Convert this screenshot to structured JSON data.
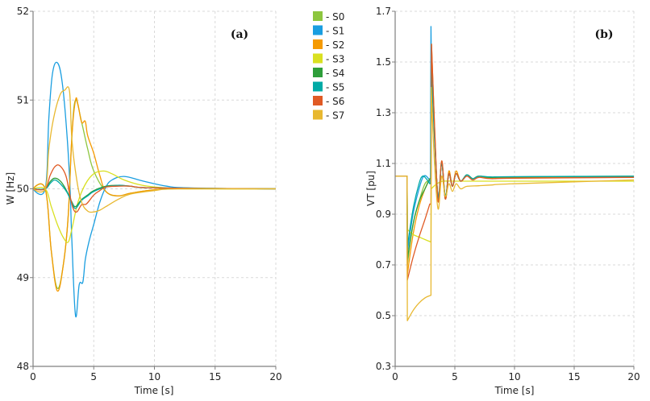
{
  "legend": {
    "items": [
      {
        "label": "- S0",
        "color": "#8dc63f"
      },
      {
        "label": "- S1",
        "color": "#1a9ee0"
      },
      {
        "label": "- S2",
        "color": "#f59a00"
      },
      {
        "label": "- S3",
        "color": "#d9e021"
      },
      {
        "label": "- S4",
        "color": "#2e9e3a"
      },
      {
        "label": "- S5",
        "color": "#00aaa6"
      },
      {
        "label": "- S6",
        "color": "#e05a24"
      },
      {
        "label": "- S7",
        "color": "#e8b830"
      }
    ]
  },
  "chart_data": [
    {
      "type": "line",
      "panel_label": "(a)",
      "title": "",
      "xlabel": "Time [s]",
      "ylabel": "W [Hz]",
      "xlim": [
        0,
        20
      ],
      "ylim": [
        48,
        52
      ],
      "xticks": [
        0,
        5,
        10,
        15,
        20
      ],
      "yticks": [
        48,
        49,
        50,
        51,
        52
      ],
      "ytick_labels": [
        "48",
        "49",
        "50",
        "51",
        "52"
      ],
      "grid": true,
      "legend_position": "right",
      "series": [
        {
          "name": "S0",
          "x": [
            0,
            1,
            1.5,
            2,
            2.5,
            2.9,
            3.2,
            3.5,
            4,
            4.5,
            5,
            6,
            7,
            8,
            10,
            12,
            20
          ],
          "y": [
            50,
            50,
            49.3,
            48.88,
            49.15,
            49.7,
            50.6,
            51.0,
            50.75,
            50.45,
            50.2,
            49.97,
            49.92,
            49.95,
            49.99,
            50,
            50
          ]
        },
        {
          "name": "S1",
          "x": [
            0,
            1,
            1.3,
            1.6,
            2,
            2.4,
            2.8,
            3.05,
            3.2,
            3.5,
            3.8,
            4.1,
            4.3,
            4.6,
            5,
            5.5,
            6,
            6.5,
            7.5,
            9,
            11,
            13,
            20
          ],
          "y": [
            50,
            50,
            50.8,
            51.3,
            51.42,
            51.2,
            50.6,
            50.0,
            49.4,
            48.57,
            48.92,
            48.95,
            49.2,
            49.4,
            49.6,
            49.85,
            50.02,
            50.1,
            50.14,
            50.09,
            50.03,
            50.01,
            50
          ]
        },
        {
          "name": "S2",
          "x": [
            0,
            1,
            1.5,
            2,
            2.5,
            2.9,
            3.2,
            3.5,
            3.7,
            4,
            4.3,
            4.5,
            5,
            5.5,
            6,
            7,
            8,
            10,
            12,
            20
          ],
          "y": [
            50,
            50,
            49.3,
            48.85,
            49.15,
            49.7,
            50.6,
            51.0,
            50.95,
            50.75,
            50.76,
            50.6,
            50.4,
            50.15,
            49.97,
            49.92,
            49.95,
            49.99,
            50,
            50
          ]
        },
        {
          "name": "S3",
          "x": [
            0,
            1,
            1.5,
            2,
            2.5,
            2.9,
            3.2,
            3.7,
            4.3,
            5,
            5.8,
            6.5,
            7.5,
            9,
            11,
            13,
            20
          ],
          "y": [
            50,
            50,
            49.8,
            49.6,
            49.45,
            49.4,
            49.55,
            49.85,
            50.05,
            50.17,
            50.2,
            50.17,
            50.1,
            50.04,
            50.01,
            50,
            50
          ]
        },
        {
          "name": "S4",
          "x": [
            0,
            1,
            1.4,
            1.8,
            2.3,
            2.8,
            3.2,
            3.5,
            4,
            4.5,
            5,
            6,
            7,
            8,
            10,
            20
          ],
          "y": [
            50,
            50,
            50.08,
            50.12,
            50.08,
            49.97,
            49.85,
            49.8,
            49.88,
            49.93,
            49.98,
            50.03,
            50.04,
            50.03,
            50.01,
            50
          ]
        },
        {
          "name": "S5",
          "x": [
            0,
            1,
            1.4,
            1.8,
            2.3,
            2.8,
            3.2,
            3.5,
            4,
            4.5,
            5,
            6,
            7,
            8,
            10,
            20
          ],
          "y": [
            50,
            50,
            50.06,
            50.1,
            50.05,
            49.96,
            49.84,
            49.78,
            49.87,
            49.92,
            49.97,
            50.02,
            50.04,
            50.03,
            50.01,
            50
          ]
        },
        {
          "name": "S6",
          "x": [
            0,
            1,
            1.4,
            1.8,
            2.2,
            2.7,
            3.0,
            3.3,
            3.6,
            4,
            4.4,
            5,
            5.5,
            6,
            7,
            8,
            10,
            20
          ],
          "y": [
            50,
            50,
            50.15,
            50.25,
            50.26,
            50.15,
            49.95,
            49.78,
            49.74,
            49.82,
            49.83,
            49.93,
            49.98,
            50.02,
            50.03,
            50.03,
            50.01,
            50
          ]
        },
        {
          "name": "S7",
          "x": [
            0,
            1,
            1.3,
            1.7,
            2.2,
            2.6,
            3.0,
            3.2,
            3.6,
            4,
            4.5,
            5,
            5.5,
            6,
            7,
            8,
            10,
            12,
            20
          ],
          "y": [
            50,
            50,
            50.45,
            50.8,
            51.05,
            51.11,
            51.1,
            50.55,
            50.1,
            49.85,
            49.75,
            49.74,
            49.76,
            49.8,
            49.88,
            49.94,
            49.98,
            50,
            50
          ]
        }
      ]
    },
    {
      "type": "line",
      "panel_label": "(b)",
      "title": "",
      "xlabel": "Time [s]",
      "ylabel": "VT [pu]",
      "xlim": [
        0,
        20
      ],
      "ylim": [
        0.3,
        1.7
      ],
      "xticks": [
        0,
        5,
        10,
        15,
        20
      ],
      "yticks": [
        0.3,
        0.5,
        0.7,
        0.9,
        1.1,
        1.3,
        1.5,
        1.7
      ],
      "ytick_labels": [
        "0.3",
        "0.5",
        "0.7",
        "0.9",
        "1.1",
        "1.3",
        "1.5",
        "1.7"
      ],
      "grid": true,
      "series": [
        {
          "name": "S0",
          "x": [
            0,
            1,
            1.02,
            1.5,
            2,
            2.5,
            2.9,
            3.0,
            3.05,
            3.3,
            3.6,
            3.9,
            4.2,
            4.5,
            4.8,
            5.1,
            5.5,
            6,
            6.5,
            7,
            8,
            10,
            20
          ],
          "y": [
            1.05,
            1.05,
            0.7,
            0.86,
            0.95,
            1.02,
            1.03,
            1.03,
            1.48,
            1.2,
            0.97,
            1.1,
            0.96,
            1.06,
            1.01,
            1.06,
            1.03,
            1.055,
            1.04,
            1.05,
            1.045,
            1.047,
            1.048
          ]
        },
        {
          "name": "S1",
          "x": [
            0,
            1,
            1.02,
            1.5,
            2,
            2.4,
            2.8,
            2.95,
            3.0,
            3.05,
            3.3,
            3.6,
            3.9,
            4.2,
            4.5,
            4.8,
            5.1,
            5.5,
            6,
            6.5,
            7,
            8,
            10,
            20
          ],
          "y": [
            1.05,
            1.05,
            0.75,
            0.9,
            1.0,
            1.05,
            1.04,
            1.02,
            1.64,
            1.45,
            1.2,
            0.97,
            1.1,
            0.96,
            1.06,
            1.01,
            1.06,
            1.03,
            1.055,
            1.04,
            1.05,
            1.045,
            1.047,
            1.048
          ]
        },
        {
          "name": "S2",
          "x": [
            0,
            1,
            1.02,
            1.5,
            2,
            2.5,
            2.9,
            3.0,
            3.05,
            3.3,
            3.6,
            3.9,
            4.2,
            4.5,
            4.8,
            5.1,
            5.5,
            6,
            6.5,
            7,
            8,
            10,
            20
          ],
          "y": [
            1.05,
            1.05,
            0.66,
            0.82,
            0.93,
            1.0,
            1.04,
            1.04,
            1.57,
            1.25,
            0.95,
            1.11,
            0.96,
            1.07,
            1.01,
            1.07,
            1.03,
            1.055,
            1.04,
            1.05,
            1.042,
            1.044,
            1.045
          ]
        },
        {
          "name": "S3",
          "x": [
            0,
            1,
            1.02,
            1.5,
            2,
            2.5,
            3.0,
            3.02,
            3.5,
            4,
            5,
            6,
            8,
            10,
            20
          ],
          "y": [
            1.05,
            1.05,
            0.84,
            0.82,
            0.81,
            0.8,
            0.79,
            1.0,
            1.02,
            1.03,
            1.03,
            1.03,
            1.03,
            1.03,
            1.03
          ]
        },
        {
          "name": "S4",
          "x": [
            0,
            1,
            1.02,
            1.5,
            2,
            2.5,
            2.9,
            3.0,
            3.05,
            3.3,
            3.6,
            3.9,
            4.2,
            4.5,
            4.8,
            5.1,
            5.5,
            6,
            6.5,
            7,
            8,
            10,
            20
          ],
          "y": [
            1.05,
            1.05,
            0.72,
            0.86,
            0.95,
            1.0,
            1.04,
            1.04,
            1.47,
            1.22,
            0.96,
            1.1,
            0.97,
            1.06,
            1.01,
            1.06,
            1.03,
            1.055,
            1.04,
            1.05,
            1.045,
            1.047,
            1.05
          ]
        },
        {
          "name": "S5",
          "x": [
            0,
            1,
            1.02,
            1.5,
            2,
            2.3,
            2.6,
            2.9,
            3.0,
            3.05,
            3.3,
            3.6,
            3.9,
            4.2,
            4.5,
            4.8,
            5.1,
            5.5,
            6,
            6.5,
            7,
            8,
            10,
            20
          ],
          "y": [
            1.05,
            1.05,
            0.77,
            0.92,
            1.02,
            1.05,
            1.04,
            1.02,
            1.02,
            1.48,
            1.22,
            0.96,
            1.1,
            0.97,
            1.06,
            1.01,
            1.06,
            1.03,
            1.055,
            1.04,
            1.05,
            1.047,
            1.048,
            1.05
          ]
        },
        {
          "name": "S6",
          "x": [
            0,
            1,
            1.02,
            1.5,
            2,
            2.5,
            2.9,
            3.0,
            3.05,
            3.3,
            3.6,
            3.9,
            4.2,
            4.5,
            4.8,
            5.1,
            5.5,
            6,
            6.5,
            7,
            8,
            10,
            20
          ],
          "y": [
            1.05,
            1.05,
            0.64,
            0.73,
            0.81,
            0.88,
            0.94,
            0.94,
            1.57,
            1.25,
            0.95,
            1.11,
            0.96,
            1.06,
            1.01,
            1.06,
            1.03,
            1.05,
            1.035,
            1.045,
            1.04,
            1.042,
            1.045
          ]
        },
        {
          "name": "S7",
          "x": [
            0,
            1,
            1.02,
            1.5,
            2,
            2.5,
            3.0,
            3.02,
            3.3,
            3.6,
            3.9,
            4.2,
            4.5,
            4.8,
            5.1,
            5.5,
            6,
            7,
            8,
            10,
            20
          ],
          "y": [
            1.05,
            1.05,
            0.48,
            0.52,
            0.55,
            0.57,
            0.58,
            1.4,
            1.1,
            0.92,
            1.05,
            0.97,
            1.02,
            0.99,
            1.02,
            1.0,
            1.01,
            1.012,
            1.015,
            1.02,
            1.035
          ]
        }
      ]
    }
  ]
}
